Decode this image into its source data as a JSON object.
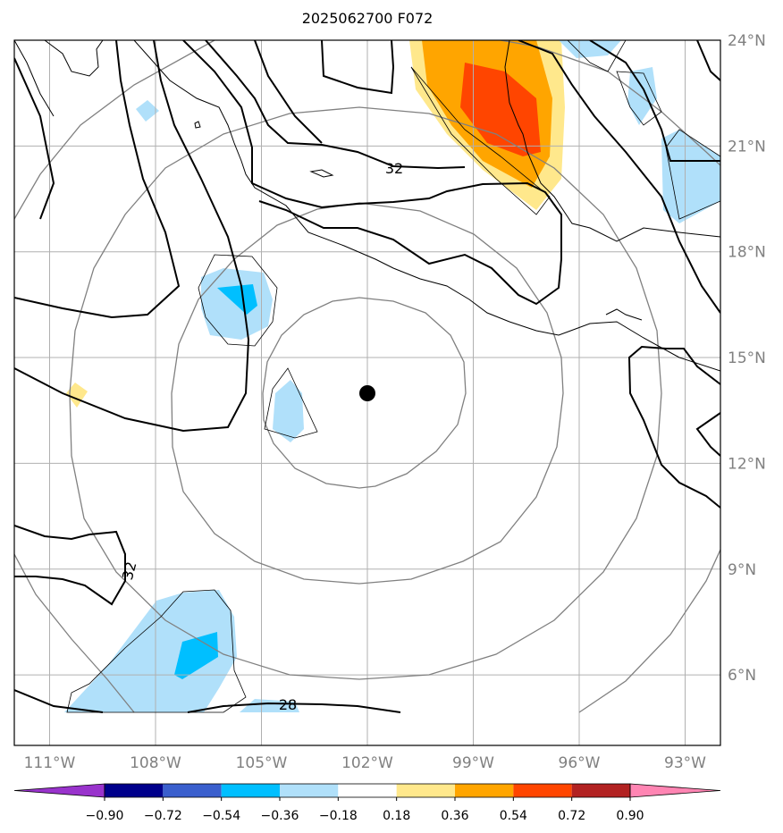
{
  "title": "2025062700 F072",
  "map": {
    "lon_range": [
      -112,
      -92
    ],
    "lat_range": [
      4,
      24
    ],
    "lon_ticks": [
      {
        "value": -111,
        "label": "111°W"
      },
      {
        "value": -108,
        "label": "108°W"
      },
      {
        "value": -105,
        "label": "105°W"
      },
      {
        "value": -102,
        "label": "102°W"
      },
      {
        "value": -99,
        "label": "99°W"
      },
      {
        "value": -96,
        "label": "96°W"
      },
      {
        "value": -93,
        "label": "93°W"
      }
    ],
    "lat_ticks": [
      {
        "value": 24,
        "label": "24°N"
      },
      {
        "value": 21,
        "label": "21°N"
      },
      {
        "value": 18,
        "label": "18°N"
      },
      {
        "value": 15,
        "label": "15°N"
      },
      {
        "value": 12,
        "label": "12°N"
      },
      {
        "value": 9,
        "label": "9°N"
      },
      {
        "value": 6,
        "label": "6°N"
      }
    ],
    "center_marker": {
      "lon": -101.8,
      "lat": 14.0
    },
    "range_rings": true,
    "gridlines": true
  },
  "contours": {
    "labels": [
      {
        "text": "32",
        "lon": -101.1,
        "lat": 20.8
      },
      {
        "text": "32",
        "lon": -108.5,
        "lat": 8.0
      },
      {
        "text": "28",
        "lon": -104.0,
        "lat": 5.2
      }
    ]
  },
  "colorbar": {
    "colors": [
      "#9933cc",
      "#00008b",
      "#3a5fcd",
      "#00bfff",
      "#b0e0fa",
      "#ffffff",
      "#ffe88c",
      "#ffa500",
      "#ff4500",
      "#b22222",
      "#ff85b3"
    ],
    "tick_labels": [
      "−0.90",
      "−0.72",
      "−0.54",
      "−0.36",
      "−0.18",
      "0.18",
      "0.36",
      "0.54",
      "0.72",
      "0.90"
    ],
    "levels": [
      -0.9,
      -0.72,
      -0.54,
      -0.36,
      -0.18,
      0.18,
      0.36,
      0.54,
      0.72,
      0.9
    ]
  },
  "colors": {
    "grid": "#b0b0b0",
    "rings": "#808080",
    "coast": "#000000",
    "light_blue": "#b0e0fa",
    "blue": "#00bfff",
    "yellow": "#ffe88c",
    "orange": "#ffa500",
    "red": "#ff4500"
  }
}
